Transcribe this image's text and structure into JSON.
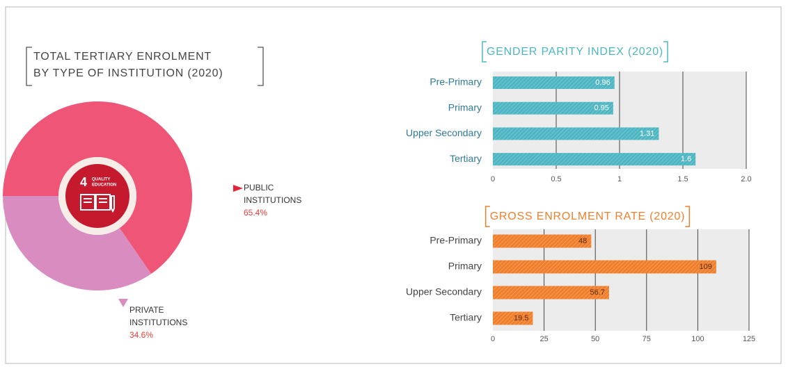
{
  "chart_data": [
    {
      "type": "pie",
      "title": [
        "TOTAL TERTIARY ENROLMENT",
        "BY TYPE OF INSTITUTION (2020)"
      ],
      "categories": [
        "PUBLIC INSTITUTIONS",
        "PRIVATE INSTITUTIONS"
      ],
      "values": [
        65.4,
        34.6
      ],
      "value_labels": [
        "65.4%",
        "34.6%"
      ],
      "colors": [
        "#ef5576",
        "#d98cc0"
      ],
      "icon": {
        "number": "4",
        "label": [
          "QUALITY",
          "EDUCATION"
        ],
        "color": "#c5192d"
      }
    },
    {
      "type": "barh",
      "title": "GENDER PARITY INDEX (2020)",
      "categories": [
        "Pre-Primary",
        "Primary",
        "Upper Secondary",
        "Tertiary"
      ],
      "values": [
        0.96,
        0.95,
        1.31,
        1.6
      ],
      "color": "#4db6c2",
      "xlim": [
        0,
        2
      ],
      "xticks": [
        0,
        0.5,
        1,
        1.5,
        {
          "value": 2,
          "label": "2.0"
        }
      ],
      "grid": true
    },
    {
      "type": "barh",
      "title": "GROSS ENROLMENT RATE (2020)",
      "categories": [
        "Pre-Primary",
        "Primary",
        "Upper Secondary",
        "Tertiary"
      ],
      "values": [
        48,
        109,
        56.7,
        19.5
      ],
      "color": "#f07f2c",
      "xlim": [
        0,
        125
      ],
      "xticks": [
        0,
        25,
        50,
        75,
        100,
        125
      ],
      "grid": true
    }
  ]
}
